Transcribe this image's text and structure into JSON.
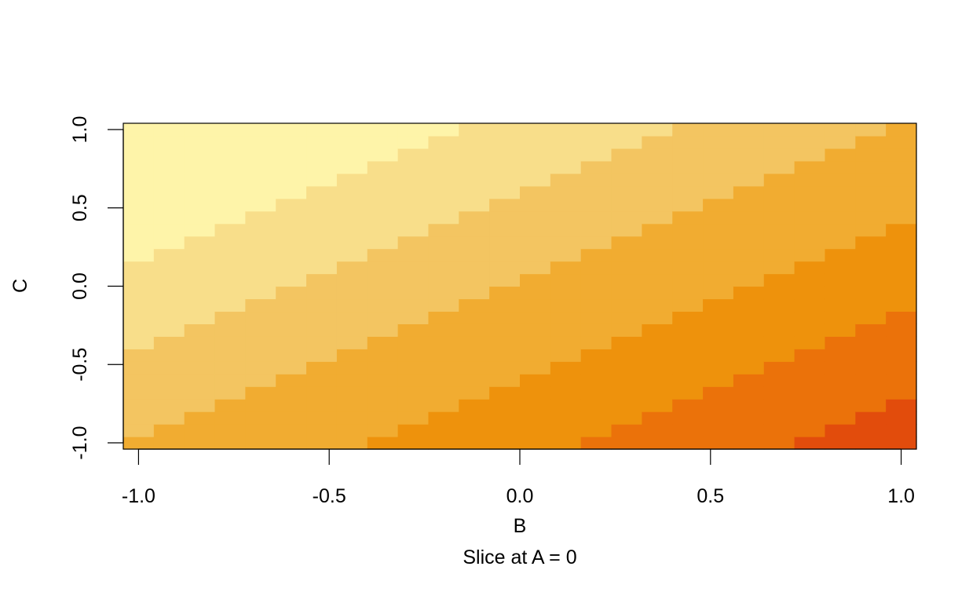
{
  "chart_data": {
    "type": "heatmap",
    "title": "",
    "xlabel": "B",
    "ylabel": "C",
    "caption": "Slice at A = 0",
    "xlim": [
      -1.04,
      1.04
    ],
    "ylim": [
      -1.04,
      1.04
    ],
    "x_ticks": [
      -1.0,
      -0.5,
      0.0,
      0.5,
      1.0
    ],
    "x_tick_labels": [
      "-1.0",
      "-0.5",
      "0.0",
      "0.5",
      "1.0"
    ],
    "y_ticks": [
      -1.0,
      -0.5,
      0.0,
      0.5,
      1.0
    ],
    "y_tick_labels": [
      "-1.0",
      "-0.5",
      "0.0",
      "0.5",
      "1.0"
    ],
    "grid": false,
    "legend": "none",
    "grid_size": [
      26,
      26
    ],
    "x_range": [
      -1.0,
      1.0
    ],
    "y_range": [
      -1.0,
      1.0
    ],
    "levels": [
      {
        "level": 1,
        "color": "#FEF4A9"
      },
      {
        "level": 2,
        "color": "#F8DE8A"
      },
      {
        "level": 3,
        "color": "#F3C561"
      },
      {
        "level": 4,
        "color": "#F1AC31"
      },
      {
        "level": 5,
        "color": "#EE920C"
      },
      {
        "level": 6,
        "color": "#EB720A"
      },
      {
        "level": 7,
        "color": "#E24C0C"
      }
    ],
    "level_rule": "level = 4 + floor(3.5 * ((B - C) / 2))",
    "series": []
  }
}
